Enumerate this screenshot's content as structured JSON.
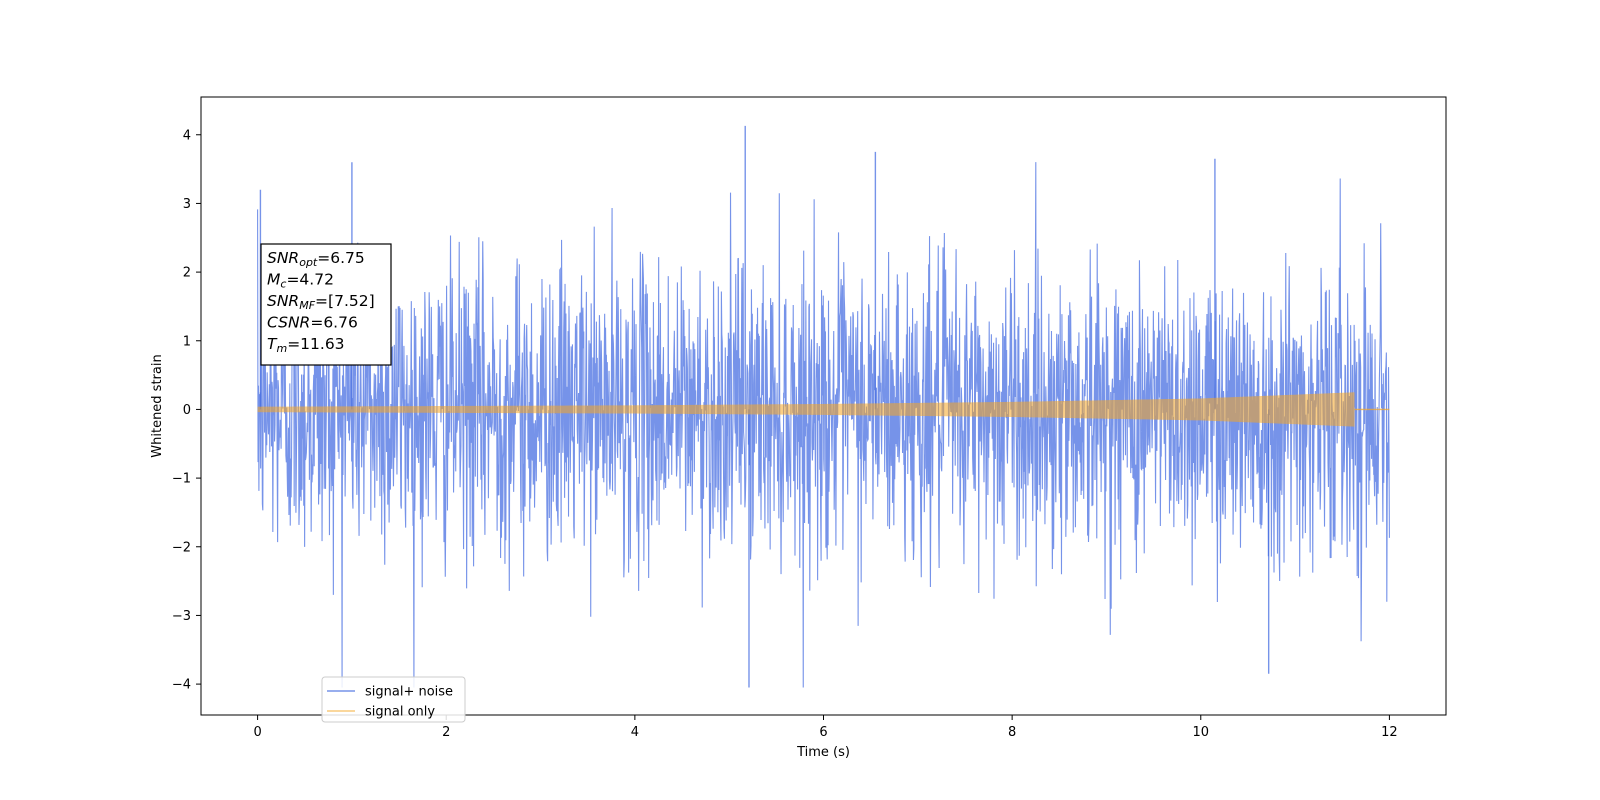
{
  "chart_data": {
    "type": "line",
    "xlabel": "Time (s)",
    "ylabel": "Whitened strain",
    "xlim": [
      -0.6,
      12.6
    ],
    "ylim": [
      -4.45,
      4.55
    ],
    "xticks": [
      0,
      2,
      4,
      6,
      8,
      10,
      12
    ],
    "yticks": [
      -4,
      -3,
      -2,
      -1,
      0,
      1,
      2,
      3,
      4
    ],
    "series": [
      {
        "name": "signal+ noise",
        "color": "#4169e1",
        "x_range": [
          0,
          12
        ],
        "y_min": -4.05,
        "y_max": 4.13,
        "peaks": [
          [
            5.17,
            4.13
          ],
          [
            5.21,
            -4.05
          ],
          [
            10.72,
            -3.85
          ],
          [
            6.55,
            3.75
          ],
          [
            10.15,
            3.65
          ],
          [
            1.0,
            3.6
          ],
          [
            0.03,
            3.2
          ]
        ]
      },
      {
        "name": "signal only",
        "color": "#f5a623",
        "x_range": [
          0,
          12
        ],
        "envelope": [
          [
            0,
            0.04
          ],
          [
            2,
            0.05
          ],
          [
            4,
            0.06
          ],
          [
            6,
            0.08
          ],
          [
            8,
            0.11
          ],
          [
            10,
            0.16
          ],
          [
            11.63,
            0.25
          ]
        ],
        "merger_time": 11.63
      }
    ],
    "annotation": [
      {
        "sym": "SNR",
        "sub": "opt",
        "val": "=6.75"
      },
      {
        "sym": "M",
        "sub": "c",
        "val": "=4.72"
      },
      {
        "sym": "SNR",
        "sub": "MF",
        "val": "=[7.52]"
      },
      {
        "sym": "CSNR",
        "sub": "",
        "val": "=6.76"
      },
      {
        "sym": "T",
        "sub": "m",
        "val": "=11.63"
      }
    ],
    "legend": {
      "placement": "lower-left",
      "entries": [
        "signal+ noise",
        "signal only"
      ]
    },
    "grid": false
  }
}
